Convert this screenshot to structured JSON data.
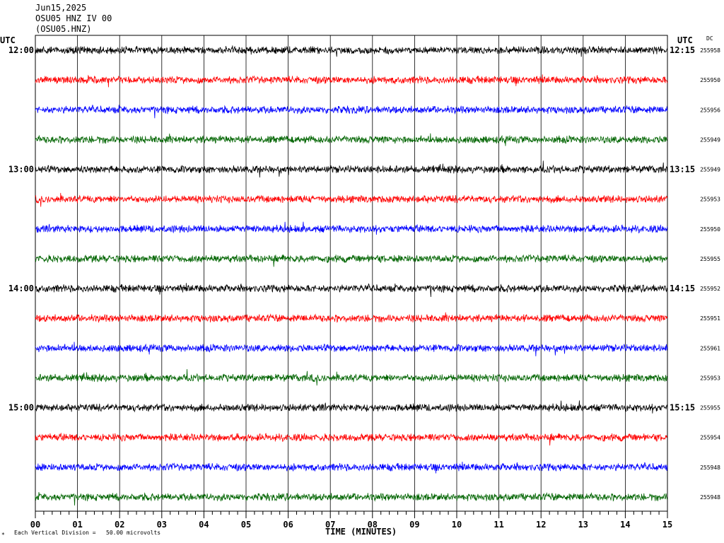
{
  "header": {
    "date": "Jun15,2025",
    "station": "OSU05 HNZ IV 00",
    "code": "(OSU05.HNZ)"
  },
  "utc_left": "UTC",
  "utc_right": "UTC",
  "dc_label": "DC",
  "footer": {
    "mark": "*",
    "scale_text": "Each Vertical Division =   50.00 microvolts"
  },
  "chart_data": {
    "type": "line",
    "title": "",
    "xlabel": "TIME (MINUTES)",
    "ylabel": "",
    "x_ticks": [
      "00",
      "01",
      "02",
      "03",
      "04",
      "05",
      "06",
      "07",
      "08",
      "09",
      "10",
      "11",
      "12",
      "13",
      "14",
      "15"
    ],
    "xlim": [
      0,
      15
    ],
    "grid": true,
    "line_colors": [
      "#000000",
      "#ff0000",
      "#0000ff",
      "#006400"
    ],
    "left_hour_labels": [
      "12:00",
      "13:00",
      "14:00",
      "15:00"
    ],
    "right_hour_labels": [
      "12:15",
      "13:15",
      "14:15",
      "15:15"
    ],
    "dc_offsets": [
      "255958",
      "255950",
      "255956",
      "255949",
      "255949",
      "255953",
      "255950",
      "255955",
      "255952",
      "255951",
      "255961",
      "255953",
      "255955",
      "255954",
      "255948",
      "255948"
    ]
  }
}
